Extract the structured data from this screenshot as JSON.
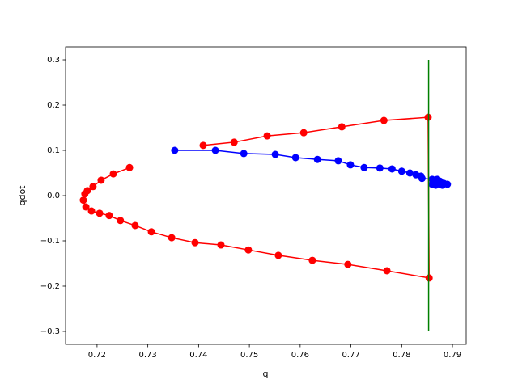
{
  "chart_data": {
    "type": "line",
    "xlabel": "q",
    "ylabel": "qdot",
    "xlim": [
      0.7138,
      0.7927
    ],
    "ylim": [
      -0.3286,
      0.3286
    ],
    "xticks": [
      0.72,
      0.73,
      0.74,
      0.75,
      0.76,
      0.77,
      0.78,
      0.79
    ],
    "yticks": [
      {
        "value": -0.3,
        "label": "−0.3"
      },
      {
        "value": -0.2,
        "label": "−0.2"
      },
      {
        "value": -0.1,
        "label": "−0.1"
      },
      {
        "value": 0,
        "label": "0.0"
      },
      0.1,
      0.2,
      0.3
    ],
    "grid": false,
    "series": [
      {
        "color": "#ff0000",
        "marker": true,
        "x": [
          0.7264,
          0.7232,
          0.7208,
          0.7192,
          0.7181,
          0.7176,
          0.7173,
          0.7178,
          0.7189,
          0.7205,
          0.7224,
          0.7246,
          0.7275,
          0.7307,
          0.7347,
          0.7393,
          0.7444,
          0.7498,
          0.7557,
          0.7624,
          0.7694,
          0.7771,
          0.7854,
          0.7852,
          0.7765,
          0.7682,
          0.7607,
          0.7535,
          0.747,
          0.7409
        ],
        "values": [
          0.062,
          0.048,
          0.034,
          0.02,
          0.011,
          0.004,
          -0.01,
          -0.025,
          -0.034,
          -0.039,
          -0.044,
          -0.055,
          -0.066,
          -0.08,
          -0.093,
          -0.104,
          -0.109,
          -0.12,
          -0.132,
          -0.143,
          -0.152,
          -0.166,
          -0.182,
          0.173,
          0.166,
          0.152,
          0.139,
          0.132,
          0.118,
          0.111
        ]
      },
      {
        "color": "#0000ff",
        "marker": true,
        "x": [
          0.7353,
          0.7433,
          0.7489,
          0.7551,
          0.7591,
          0.7634,
          0.7675,
          0.7699,
          0.7726,
          0.7757,
          0.7781,
          0.78,
          0.7816,
          0.7828,
          0.7838,
          0.784,
          0.786,
          0.787,
          0.7875,
          0.7883,
          0.789,
          0.788,
          0.7867,
          0.786,
          0.7864
        ],
        "values": [
          0.1,
          0.1,
          0.093,
          0.091,
          0.084,
          0.08,
          0.077,
          0.068,
          0.062,
          0.061,
          0.059,
          0.054,
          0.05,
          0.046,
          0.043,
          0.038,
          0.036,
          0.036,
          0.032,
          0.027,
          0.025,
          0.023,
          0.023,
          0.025,
          0.03
        ]
      },
      {
        "color": "#008000",
        "marker": false,
        "x": [
          0.7853,
          0.7853
        ],
        "values": [
          -0.3,
          0.3
        ]
      }
    ]
  }
}
